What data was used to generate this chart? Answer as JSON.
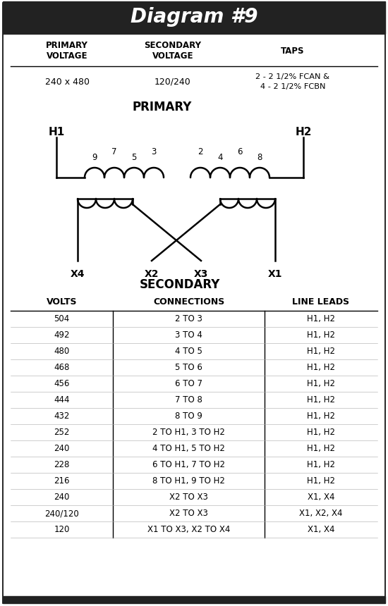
{
  "title": "Diagram #9",
  "title_bg": "#222222",
  "title_color": "#ffffff",
  "title_fontsize": 20,
  "primary_voltage": "240 x 480",
  "secondary_voltage": "120/240",
  "taps_line1": "2 - 2 1/2% FCAN &",
  "taps_line2": "4 - 2 1/2% FCBN",
  "primary_label": "PRIMARY",
  "secondary_label": "SECONDARY",
  "col_headers": [
    "VOLTS",
    "CONNECTIONS",
    "LINE LEADS"
  ],
  "table_data": [
    [
      "504",
      "2 TO 3",
      "H1, H2"
    ],
    [
      "492",
      "3 TO 4",
      "H1, H2"
    ],
    [
      "480",
      "4 TO 5",
      "H1, H2"
    ],
    [
      "468",
      "5 TO 6",
      "H1, H2"
    ],
    [
      "456",
      "6 TO 7",
      "H1, H2"
    ],
    [
      "444",
      "7 TO 8",
      "H1, H2"
    ],
    [
      "432",
      "8 TO 9",
      "H1, H2"
    ],
    [
      "252",
      "2 TO H1, 3 TO H2",
      "H1, H2"
    ],
    [
      "240",
      "4 TO H1, 5 TO H2",
      "H1, H2"
    ],
    [
      "228",
      "6 TO H1, 7 TO H2",
      "H1, H2"
    ],
    [
      "216",
      "8 TO H1, 9 TO H2",
      "H1, H2"
    ],
    [
      "240",
      "X2 TO X3",
      "X1, X4"
    ],
    [
      "240/120",
      "X2 TO X3",
      "X1, X2, X4"
    ],
    [
      "120",
      "X1 TO X3, X2 TO X4",
      "X1, X4"
    ]
  ],
  "bg_color": "#ffffff",
  "fg_color": "#000000"
}
